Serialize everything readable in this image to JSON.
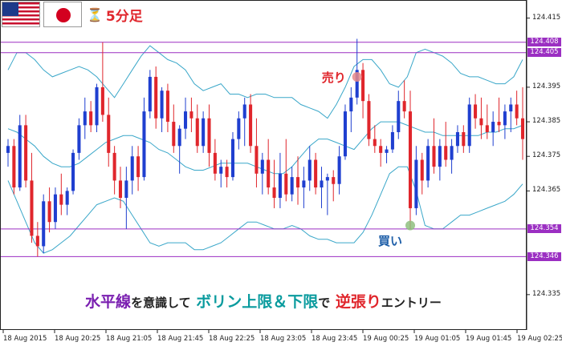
{
  "header": {
    "flag_primary": "us-flag-icon",
    "flag_secondary": "japan-flag-icon",
    "timeframe_icon": "hourglass-icon",
    "timeframe": "5分足"
  },
  "colors": {
    "bull": "#1f3fd0",
    "bear": "#e0262c",
    "band": "#3aa7c9",
    "hline": "#9b2fc2",
    "accent_red": "#e0262c",
    "accent_teal": "#0a9b9e",
    "accent_purple": "#7a1fb0"
  },
  "price_levels": [
    {
      "value": 124.408,
      "label": "124.408"
    },
    {
      "value": 124.405,
      "label": "124.405"
    },
    {
      "value": 124.354,
      "label": "124.354"
    },
    {
      "value": 124.346,
      "label": "124.346"
    }
  ],
  "annotations": {
    "sell_label": "売り",
    "buy_label": "買い"
  },
  "banner": {
    "part1": "水平線",
    "join1": "を意識して",
    "part2": "ボリン上限＆下限",
    "join2": "で",
    "part3": "逆張り",
    "tail": "エントリー"
  },
  "chart_data": {
    "type": "candlestick",
    "symbol": "USD/JPY",
    "timeframe": "5分足",
    "grid": false,
    "ylim": [
      124.325,
      124.42
    ],
    "y_ticks": [
      "124.415",
      "124.395",
      "124.385",
      "124.375",
      "124.365",
      "124.335"
    ],
    "x_ticks": [
      "18 Aug 2015",
      "18 Aug 20:25",
      "18 Aug 21:05",
      "18 Aug 21:45",
      "18 Aug 22:25",
      "18 Aug 23:05",
      "18 Aug 23:45",
      "19 Aug 00:25",
      "19 Aug 01:05",
      "19 Aug 01:45",
      "19 Aug 02:25"
    ],
    "horizontal_lines": [
      124.408,
      124.405,
      124.354,
      124.346
    ],
    "candles": [
      [
        124.376,
        124.38,
        124.372,
        124.378
      ],
      [
        124.378,
        124.38,
        124.364,
        124.366
      ],
      [
        124.366,
        124.387,
        124.365,
        124.384
      ],
      [
        124.384,
        124.387,
        124.366,
        124.368
      ],
      [
        124.368,
        124.376,
        124.35,
        124.352
      ],
      [
        124.352,
        124.356,
        124.346,
        124.349
      ],
      [
        124.349,
        124.364,
        124.347,
        124.362
      ],
      [
        124.362,
        124.366,
        124.353,
        124.356
      ],
      [
        124.356,
        124.366,
        124.354,
        124.364
      ],
      [
        124.364,
        124.37,
        124.358,
        124.361
      ],
      [
        124.361,
        124.366,
        124.358,
        124.365
      ],
      [
        124.365,
        124.377,
        124.364,
        124.376
      ],
      [
        124.376,
        124.386,
        124.374,
        124.384
      ],
      [
        124.384,
        124.392,
        124.38,
        124.388
      ],
      [
        124.388,
        124.391,
        124.382,
        124.384
      ],
      [
        124.384,
        124.396,
        124.382,
        124.395
      ],
      [
        124.395,
        124.408,
        124.385,
        124.387
      ],
      [
        124.387,
        124.392,
        124.372,
        124.376
      ],
      [
        124.376,
        124.378,
        124.364,
        124.368
      ],
      [
        124.368,
        124.372,
        124.36,
        124.363
      ],
      [
        124.363,
        124.372,
        124.354,
        124.368
      ],
      [
        124.368,
        124.378,
        124.364,
        124.375
      ],
      [
        124.375,
        124.378,
        124.365,
        124.369
      ],
      [
        124.369,
        124.392,
        124.368,
        124.388
      ],
      [
        124.388,
        124.4,
        124.386,
        124.398
      ],
      [
        124.398,
        124.401,
        124.383,
        124.386
      ],
      [
        124.386,
        124.395,
        124.382,
        124.394
      ],
      [
        124.394,
        124.396,
        124.382,
        124.385
      ],
      [
        124.385,
        124.39,
        124.376,
        124.378
      ],
      [
        124.378,
        124.384,
        124.37,
        124.383
      ],
      [
        124.383,
        124.392,
        124.38,
        124.388
      ],
      [
        124.388,
        124.392,
        124.382,
        124.386
      ],
      [
        124.386,
        124.39,
        124.376,
        124.378
      ],
      [
        124.378,
        124.388,
        124.376,
        124.386
      ],
      [
        124.386,
        124.39,
        124.372,
        124.376
      ],
      [
        124.376,
        124.38,
        124.368,
        124.37
      ],
      [
        124.37,
        124.374,
        124.366,
        124.372
      ],
      [
        124.372,
        124.374,
        124.366,
        124.369
      ],
      [
        124.369,
        124.382,
        124.368,
        124.38
      ],
      [
        124.38,
        124.388,
        124.377,
        124.386
      ],
      [
        124.386,
        124.392,
        124.378,
        124.39
      ],
      [
        124.39,
        124.393,
        124.376,
        124.378
      ],
      [
        124.378,
        124.386,
        124.366,
        124.37
      ],
      [
        124.37,
        124.376,
        124.364,
        124.374
      ],
      [
        124.374,
        124.38,
        124.364,
        124.366
      ],
      [
        124.366,
        124.374,
        124.36,
        124.363
      ],
      [
        124.363,
        124.376,
        124.36,
        124.37
      ],
      [
        124.37,
        124.38,
        124.362,
        124.364
      ],
      [
        124.364,
        124.372,
        124.362,
        124.369
      ],
      [
        124.369,
        124.375,
        124.361,
        124.366
      ],
      [
        124.366,
        124.372,
        124.36,
        124.368
      ],
      [
        124.368,
        124.378,
        124.365,
        124.374
      ],
      [
        124.374,
        124.376,
        124.364,
        124.366
      ],
      [
        124.366,
        124.372,
        124.36,
        124.368
      ],
      [
        124.368,
        124.37,
        124.358,
        124.369
      ],
      [
        124.369,
        124.371,
        124.362,
        124.367
      ],
      [
        124.367,
        124.378,
        124.364,
        124.375
      ],
      [
        124.375,
        124.39,
        124.374,
        124.388
      ],
      [
        124.388,
        124.395,
        124.382,
        124.392
      ],
      [
        124.392,
        124.409,
        124.39,
        124.4
      ],
      [
        124.4,
        124.402,
        124.386,
        124.391
      ],
      [
        124.391,
        124.393,
        124.378,
        124.38
      ],
      [
        124.38,
        124.384,
        124.376,
        124.378
      ],
      [
        124.378,
        124.38,
        124.372,
        124.376
      ],
      [
        124.376,
        124.378,
        124.373,
        124.377
      ],
      [
        124.377,
        124.384,
        124.376,
        124.382
      ],
      [
        124.382,
        124.394,
        124.38,
        124.391
      ],
      [
        124.391,
        124.397,
        124.386,
        124.388
      ],
      [
        124.388,
        124.394,
        124.354,
        124.36
      ],
      [
        124.36,
        124.378,
        124.358,
        124.374
      ],
      [
        124.374,
        124.376,
        124.364,
        124.368
      ],
      [
        124.368,
        124.38,
        124.366,
        124.378
      ],
      [
        124.378,
        124.386,
        124.37,
        124.372
      ],
      [
        124.372,
        124.38,
        124.368,
        124.378
      ],
      [
        124.378,
        124.385,
        124.372,
        124.374
      ],
      [
        124.374,
        124.38,
        124.37,
        124.378
      ],
      [
        124.378,
        124.384,
        124.376,
        124.382
      ],
      [
        124.382,
        124.384,
        124.376,
        124.378
      ],
      [
        124.378,
        124.392,
        124.376,
        124.39
      ],
      [
        124.39,
        124.393,
        124.383,
        124.386
      ],
      [
        124.386,
        124.392,
        124.38,
        124.384
      ],
      [
        124.384,
        124.39,
        124.38,
        124.382
      ],
      [
        124.382,
        124.388,
        124.378,
        124.385
      ],
      [
        124.385,
        124.392,
        124.382,
        124.384
      ],
      [
        124.384,
        124.39,
        124.38,
        124.388
      ],
      [
        124.388,
        124.392,
        124.382,
        124.39
      ],
      [
        124.39,
        124.394,
        124.384,
        124.386
      ],
      [
        124.386,
        124.395,
        124.374,
        124.38
      ]
    ],
    "bands": {
      "upper": [
        124.4,
        124.405,
        124.405,
        124.403,
        124.4,
        124.398,
        124.399,
        124.4,
        124.401,
        124.4,
        124.398,
        124.395,
        124.392,
        124.396,
        124.4,
        124.404,
        124.407,
        124.405,
        124.403,
        124.402,
        124.4,
        124.396,
        124.394,
        124.395,
        124.396,
        124.393,
        124.393,
        124.392,
        124.393,
        124.393,
        124.392,
        124.392,
        124.392,
        124.39,
        124.389,
        124.388,
        124.386,
        124.39,
        124.395,
        124.401,
        124.403,
        124.403,
        124.4,
        124.396,
        124.395,
        124.398,
        124.405,
        124.406,
        124.405,
        124.404,
        124.402,
        124.399,
        124.398,
        124.398,
        124.397,
        124.396,
        124.396,
        124.398,
        124.403
      ],
      "middle": [
        124.383,
        124.382,
        124.38,
        124.378,
        124.375,
        124.373,
        124.372,
        124.372,
        124.373,
        124.375,
        124.377,
        124.379,
        124.38,
        124.381,
        124.381,
        124.38,
        124.379,
        124.377,
        124.376,
        124.374,
        124.372,
        124.371,
        124.371,
        124.372,
        124.373,
        124.373,
        124.373,
        124.373,
        124.372,
        124.371,
        124.37,
        124.37,
        124.372,
        124.375,
        124.378,
        124.38,
        124.38,
        124.379,
        124.378,
        124.377,
        124.38,
        124.383,
        124.385,
        124.385,
        124.385,
        124.384,
        124.383,
        124.382,
        124.382,
        124.381,
        124.381,
        124.381,
        124.381,
        124.381,
        124.382,
        124.382,
        124.383,
        124.383,
        124.384
      ],
      "lower": [
        124.368,
        124.362,
        124.356,
        124.35,
        124.347,
        124.348,
        124.35,
        124.352,
        124.355,
        124.358,
        124.361,
        124.362,
        124.363,
        124.362,
        124.358,
        124.354,
        124.35,
        124.349,
        124.35,
        124.35,
        124.35,
        124.348,
        124.348,
        124.349,
        124.35,
        124.352,
        124.354,
        124.356,
        124.356,
        124.355,
        124.354,
        124.354,
        124.355,
        124.354,
        124.352,
        124.351,
        124.351,
        124.35,
        124.35,
        124.35,
        124.353,
        124.358,
        124.364,
        124.37,
        124.372,
        124.372,
        124.365,
        124.355,
        124.354,
        124.354,
        124.356,
        124.358,
        124.358,
        124.359,
        124.36,
        124.361,
        124.362,
        124.364,
        124.367
      ]
    },
    "signals": [
      {
        "type": "sell",
        "candle_index": 59,
        "price": 124.398
      },
      {
        "type": "buy",
        "candle_index": 68,
        "price": 124.355
      }
    ]
  }
}
